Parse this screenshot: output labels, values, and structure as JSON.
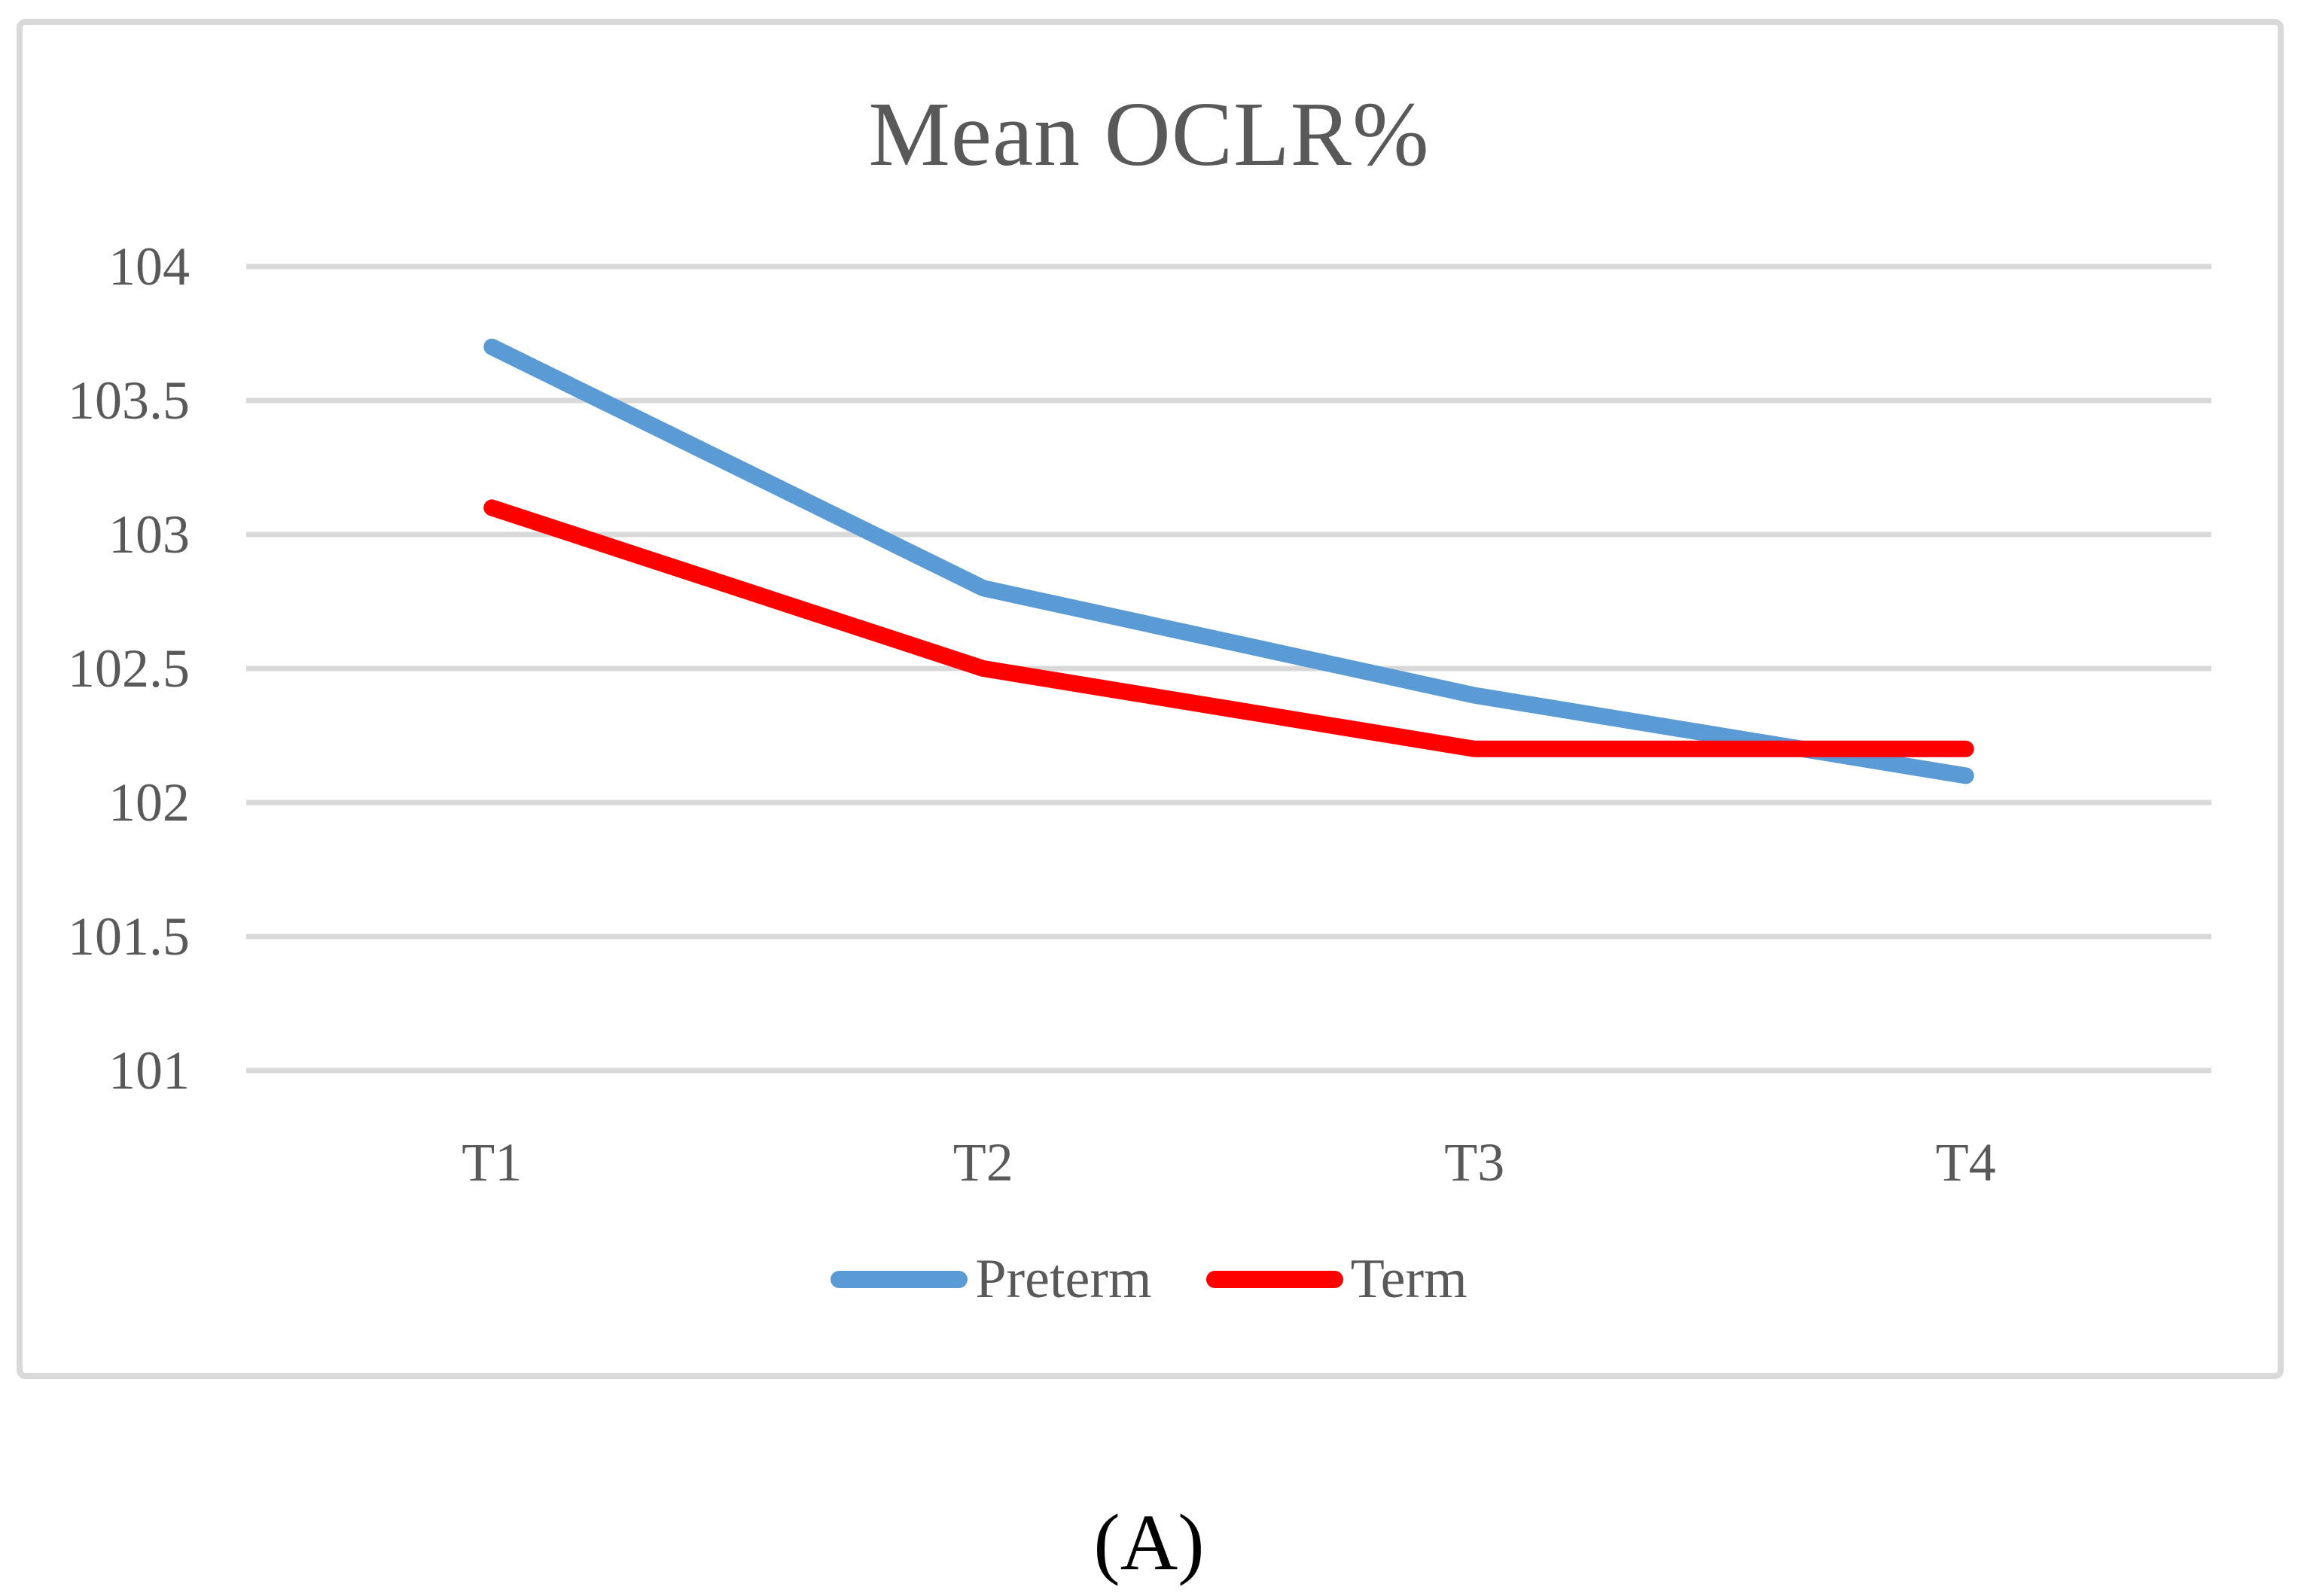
{
  "figure": {
    "caption": "(A)"
  },
  "chart": {
    "title": "Mean OCLR%",
    "text_color": "#595959",
    "grid_color": "#D9D9D9",
    "frame_color": "#D9D9D9",
    "background": "#FFFFFF"
  },
  "chart_data": {
    "type": "line",
    "title": "Mean OCLR%",
    "categories": [
      "T1",
      "T2",
      "T3",
      "T4"
    ],
    "series": [
      {
        "name": "Preterm",
        "color": "#5B9BD5",
        "values": [
          103.7,
          102.8,
          102.4,
          102.1
        ]
      },
      {
        "name": "Term",
        "color": "#FF0000",
        "values": [
          103.1,
          102.5,
          102.2,
          102.2
        ]
      }
    ],
    "ylim": [
      101,
      104
    ],
    "yticks": [
      104,
      103.5,
      103,
      102.5,
      102,
      101.5,
      101
    ],
    "xlabel": "",
    "ylabel": "",
    "grid": true,
    "legend_position": "bottom-center"
  }
}
